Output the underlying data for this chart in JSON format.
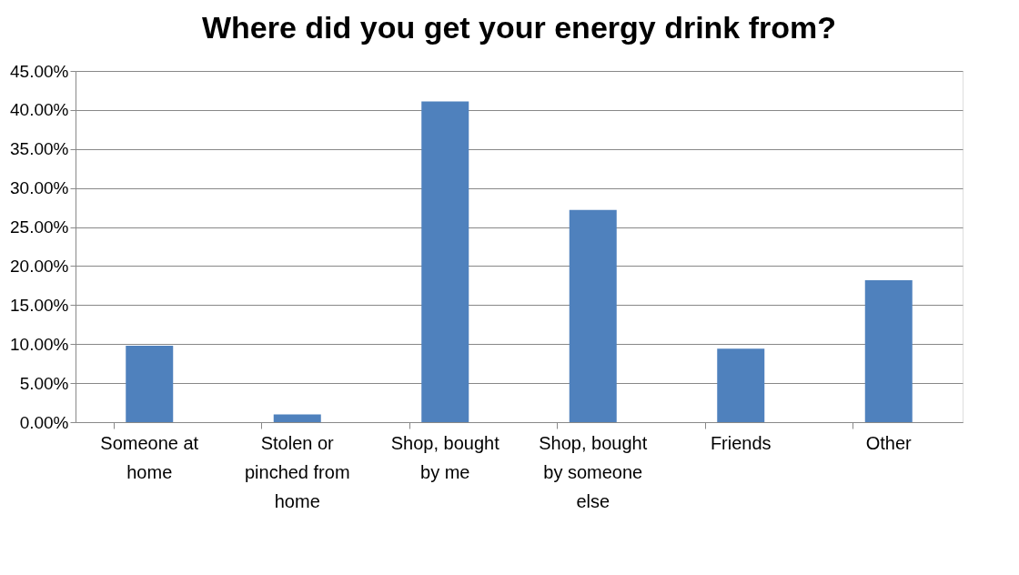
{
  "chart_data": {
    "type": "bar",
    "title": "Where did you get your energy drink from?",
    "categories": [
      "Someone at home",
      "Stolen or pinched from home",
      "Shop, bought by me",
      "Shop, bought by someone else",
      "Friends",
      "Other"
    ],
    "values": [
      9.8,
      1.0,
      41.1,
      27.2,
      9.4,
      18.2
    ],
    "color": "#4f81bd",
    "ylim": [
      0,
      45
    ],
    "yticks": [
      {
        "value": 0,
        "label": "0.00%"
      },
      {
        "value": 5,
        "label": "5.00%"
      },
      {
        "value": 10,
        "label": "10.00%"
      },
      {
        "value": 15,
        "label": "15.00%"
      },
      {
        "value": 20,
        "label": "20.00%"
      },
      {
        "value": 25,
        "label": "25.00%"
      },
      {
        "value": 30,
        "label": "30.00%"
      },
      {
        "value": 35,
        "label": "35.00%"
      },
      {
        "value": 40,
        "label": "40.00%"
      },
      {
        "value": 45,
        "label": "45.00%"
      }
    ],
    "grid": "y"
  }
}
